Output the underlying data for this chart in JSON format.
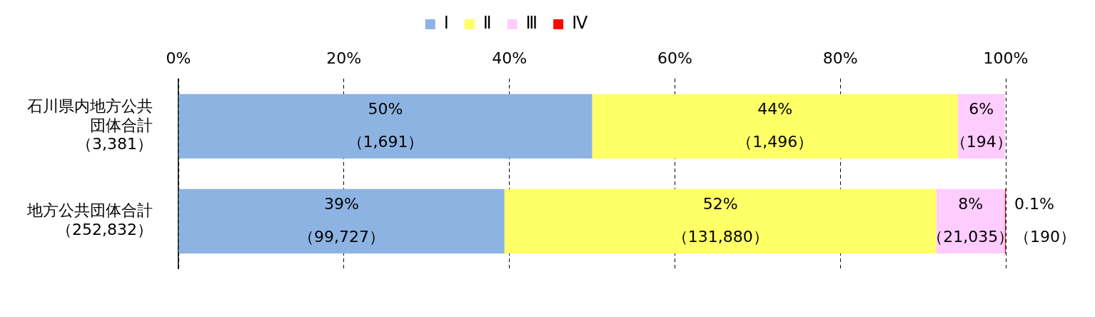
{
  "chart_data": {
    "type": "bar",
    "orientation": "horizontal",
    "stacked": true,
    "categories": [
      "石川県内地方公共団体合計（3,381）",
      "地方公共団体合計（252,832）"
    ],
    "series": [
      {
        "name": "Ⅰ",
        "color": "#8db3e2",
        "values": [
          50,
          39.4
        ],
        "value_labels": [
          "50%\n（1,691）",
          "39%\n（99,727）"
        ]
      },
      {
        "name": "Ⅱ",
        "color": "#ffff66",
        "values": [
          44.2,
          52.2
        ],
        "value_labels": [
          "44%\n（1,496）",
          "52%\n（131,880）"
        ]
      },
      {
        "name": "Ⅲ",
        "color": "#ffccff",
        "values": [
          5.7,
          8.3
        ],
        "value_labels": [
          "6%\n（194）",
          "8%\n（21,035）"
        ]
      },
      {
        "name": "Ⅳ",
        "color": "#ff0000",
        "values": [
          null,
          0.1
        ],
        "value_labels": [
          null,
          "0.1%\n（190）"
        ]
      }
    ],
    "xlim": [
      0,
      100
    ],
    "xticks": [
      {
        "value": 0,
        "label": "0%"
      },
      {
        "value": 20,
        "label": "20%"
      },
      {
        "value": 40,
        "label": "40%"
      },
      {
        "value": 60,
        "label": "60%"
      },
      {
        "value": 80,
        "label": "80%"
      },
      {
        "value": 100,
        "label": "100%"
      }
    ],
    "grid": "x",
    "legend": "top"
  }
}
